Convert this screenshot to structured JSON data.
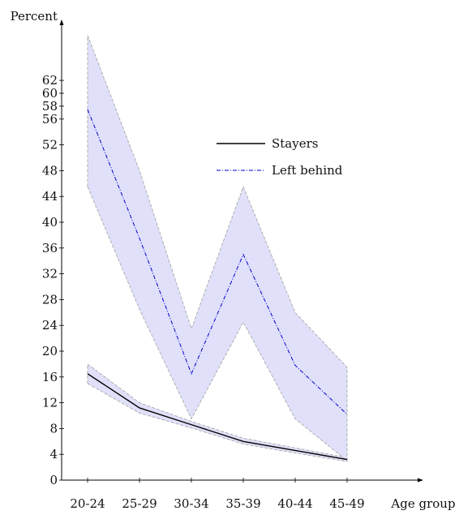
{
  "chart_data": {
    "type": "line",
    "title": "",
    "xlabel": "Age group",
    "ylabel": "Percent",
    "categories": [
      "20-24",
      "25-29",
      "30-34",
      "35-39",
      "40-44",
      "45-49"
    ],
    "ylim": [
      0,
      64
    ],
    "yticks": [
      0,
      4,
      8,
      12,
      16,
      20,
      24,
      28,
      32,
      36,
      40,
      44,
      48,
      52,
      56,
      58,
      60,
      62
    ],
    "grid": false,
    "legend_position": "center",
    "series": [
      {
        "name": "Stayers",
        "style": "solid",
        "color": "#000000",
        "values": [
          16.5,
          11.2,
          8.6,
          6.0,
          4.6,
          3.2
        ],
        "ci_lower": [
          15.0,
          10.4,
          8.1,
          5.6,
          4.2,
          2.9
        ],
        "ci_upper": [
          18.0,
          12.0,
          9.1,
          6.5,
          5.0,
          3.5
        ]
      },
      {
        "name": "Left behind",
        "style": "dashdot",
        "color": "#0000cc",
        "values": [
          57.5,
          37.5,
          16.5,
          35.0,
          17.8,
          10.2
        ],
        "ci_lower": [
          45.5,
          26.5,
          9.5,
          24.5,
          9.5,
          3.0
        ],
        "ci_upper": [
          69.0,
          48.0,
          23.5,
          45.5,
          26.0,
          17.5
        ]
      }
    ],
    "band_fill": "#e0e0fa",
    "band_edge": "#a0a0a0"
  }
}
